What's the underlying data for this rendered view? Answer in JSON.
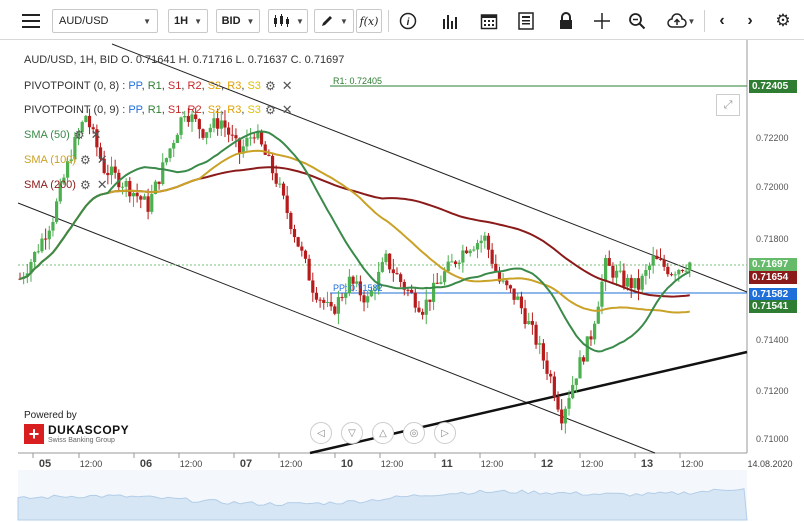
{
  "toolbar": {
    "symbol": "AUD/USD",
    "timeframe": "1H",
    "price_type": "BID",
    "fx_label": "f(x)"
  },
  "legend": {
    "ohlc": "AUD/USD, 1H, BID   O. 0.71641 H. 0.71716 L. 0.71637 C. 0.71697",
    "pivot1_name": "PIVOTPOINT (0, 8)",
    "pivot2_name": "PIVOTPOINT (0, 9)",
    "pivot_sep": " : ",
    "pivot_levels": [
      "PP",
      "R1",
      "S1",
      "R2",
      "S2",
      "R3",
      "S3"
    ],
    "sma50": "SMA (50)",
    "sma100": "SMA (100)",
    "sma200": "SMA (200)"
  },
  "chart_labels": {
    "r1_line": "R1: 0.72405",
    "pp_line": "PP: 0.71582"
  },
  "price_tags": [
    {
      "value": "0.72405",
      "color": "#2e7d32"
    },
    {
      "value": "0.71697",
      "color": "#66bb6a"
    },
    {
      "value": "0.71654",
      "color": "#8b1a1a"
    },
    {
      "value": "0.71582",
      "color": "#1e6fd9"
    },
    {
      "value": "0.71541",
      "color": "#2e7d32"
    }
  ],
  "y_axis_labels": [
    "0.72200",
    "0.72000",
    "0.71800",
    "0.71400",
    "0.71200",
    "0.71000"
  ],
  "x_axis_labels": [
    "05",
    "12:00",
    "06",
    "12:00",
    "07",
    "12:00",
    "10",
    "12:00",
    "11",
    "12:00",
    "12",
    "12:00",
    "13",
    "12:00",
    "14.08.2020"
  ],
  "branding": {
    "powered_by": "Powered by",
    "name": "DUKASCOPY",
    "tagline": "Swiss Banking Group"
  },
  "colors": {
    "sma50": "#3a8a4a",
    "sma100": "#c9a227",
    "sma200": "#8b1a1a",
    "pp": "#1e6fd9",
    "r1": "#2e7d32",
    "bull": "#4caf50",
    "bear": "#b71c1c"
  },
  "chart_data": {
    "type": "candlestick",
    "symbol": "AUD/USD",
    "interval": "1H",
    "last": {
      "open": 0.71641,
      "high": 0.71716,
      "low": 0.71637,
      "close": 0.71697
    },
    "ylim": [
      0.7098,
      0.7252
    ],
    "indicators": {
      "sma50_last": 0.71541,
      "sma100_last": 0.71582,
      "sma200_last": 0.71654,
      "pivot_pp": 0.71582,
      "pivot_r1": 0.72405
    }
  }
}
